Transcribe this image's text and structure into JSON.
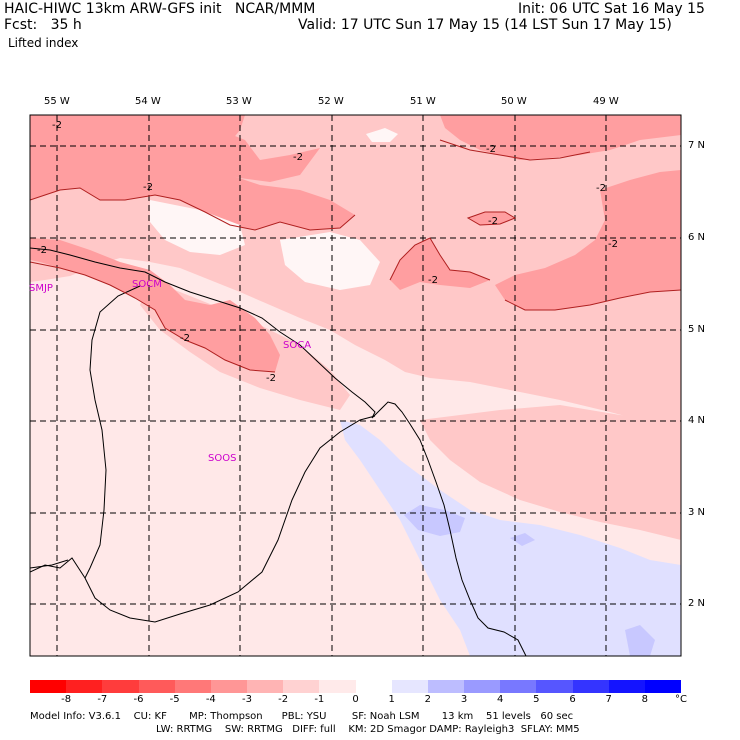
{
  "header": {
    "title_left": "HAIC-HIWC 13km ARW-GFS init   NCAR/MMM",
    "fcst": "Fcst:   35 h",
    "field": "Lifted index",
    "init": "Init: 06 UTC Sat 16 May 15",
    "valid": "Valid: 17 UTC Sun 17 May 15 (14 LST Sun 17 May 15)"
  },
  "map": {
    "lon_labels": [
      "55 W",
      "54 W",
      "53 W",
      "52 W",
      "51 W",
      "50 W",
      "49 W"
    ],
    "lat_labels": [
      "7 N",
      "6 N",
      "5 N",
      "4 N",
      "3 N",
      "2 N"
    ],
    "contour_labels": [
      "-2",
      "-2",
      "-2",
      "-2",
      "-2",
      "-2",
      "-2",
      "-2",
      "-2",
      "-2",
      "-2"
    ],
    "stations": [
      "SMJP",
      "SOCM",
      "SOCA",
      "SOOS"
    ],
    "colors": {
      "li_minus1": "#ffe8e8",
      "li_minus2": "#ffc8c8",
      "li_minus3": "#ff9ea0",
      "li_zero": "#ffffff",
      "li_plus1": "#e0e0ff",
      "li_plus2": "#c8c8ff",
      "station_label": "#cc00cc",
      "coastline": "#000000",
      "grid": "#000000"
    }
  },
  "colorbar": {
    "labels": [
      "-8",
      "-7",
      "-6",
      "-5",
      "-4",
      "-3",
      "-2",
      "-1",
      "0",
      "1",
      "2",
      "3",
      "4",
      "5",
      "6",
      "7",
      "8"
    ],
    "unit": "°C",
    "colors": [
      "#ff0000",
      "#ff2020",
      "#ff3c3c",
      "#ff5a5a",
      "#ff7878",
      "#ff9696",
      "#ffb4b4",
      "#ffd2d2",
      "#ffeaea",
      "#ffffff",
      "#e6e6ff",
      "#bdbdff",
      "#9a9aff",
      "#7878ff",
      "#5656ff",
      "#3434ff",
      "#1414ff",
      "#0000ff"
    ]
  },
  "footer": {
    "line1": "Model Info: V3.6.1    CU: KF       MP: Thompson      PBL: YSU        SF: Noah LSM       13 km    51 levels   60 sec",
    "line2": "LW: RRTMG    SW: RRTMG   DIFF: full    KM: 2D Smagor DAMP: Rayleigh3  SFLAY: MM5"
  }
}
